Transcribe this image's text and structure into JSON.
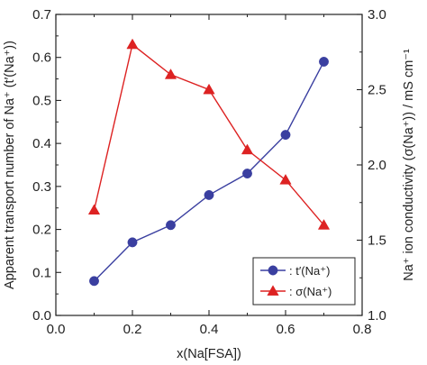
{
  "chart_data": {
    "type": "line",
    "xlabel": "x(Na[FSA])",
    "xlim": [
      0.0,
      0.8
    ],
    "xticks": [
      0.0,
      0.2,
      0.4,
      0.6,
      0.8
    ],
    "xtick_labels": [
      "0.0",
      "0.2",
      "0.4",
      "0.6",
      "0.8"
    ],
    "left_axis": {
      "label": "Apparent transport number of Na⁺ (t′(Na⁺))",
      "ylim": [
        0.0,
        0.7
      ],
      "yticks": [
        0.0,
        0.1,
        0.2,
        0.3,
        0.4,
        0.5,
        0.6,
        0.7
      ],
      "ytick_labels": [
        "0.0",
        "0.1",
        "0.2",
        "0.3",
        "0.4",
        "0.5",
        "0.6",
        "0.7"
      ]
    },
    "right_axis": {
      "label": "Na⁺ ion conductivity (σ(Na⁺)) / mS cm⁻¹",
      "ylim": [
        1.0,
        3.0
      ],
      "yticks": [
        1.0,
        1.5,
        2.0,
        2.5,
        3.0
      ],
      "ytick_labels": [
        "1.0",
        "1.5",
        "2.0",
        "2.5",
        "3.0"
      ]
    },
    "series": [
      {
        "name": ": t′(Na⁺)",
        "axis": "left",
        "color": "#3a3fa0",
        "marker": "circle",
        "x": [
          0.1,
          0.2,
          0.3,
          0.4,
          0.5,
          0.6,
          0.7
        ],
        "values": [
          0.08,
          0.17,
          0.21,
          0.28,
          0.33,
          0.42,
          0.59
        ]
      },
      {
        "name": ": σ(Na⁺)",
        "axis": "right",
        "color": "#dd2222",
        "marker": "triangle",
        "x": [
          0.1,
          0.2,
          0.3,
          0.4,
          0.5,
          0.6,
          0.7
        ],
        "values": [
          1.7,
          2.8,
          2.6,
          2.5,
          2.1,
          1.9,
          1.6
        ]
      }
    ],
    "grid": false,
    "legend_position": "bottom-right"
  }
}
